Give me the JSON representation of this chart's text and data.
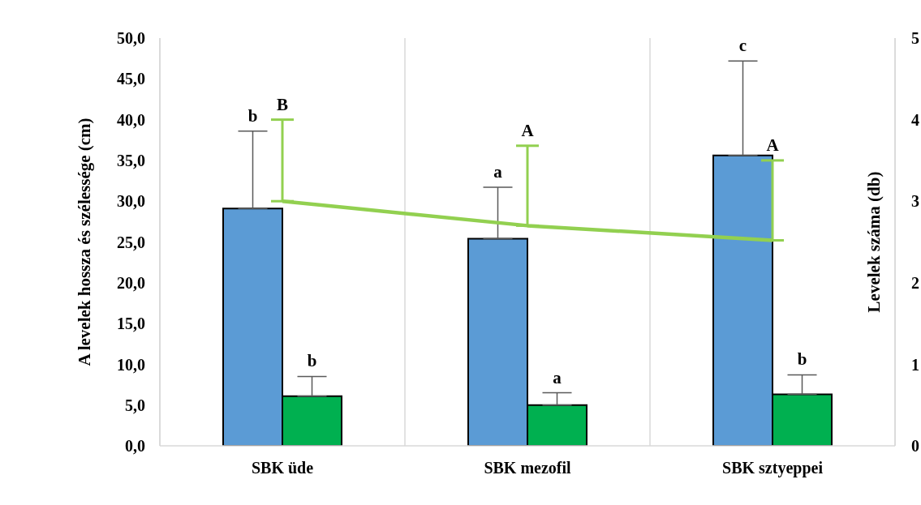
{
  "chart_data": {
    "type": "bar",
    "ylabel": "A levelek hossza és szélessége (cm)",
    "y2label": "Levelek száma (db)",
    "categories": [
      "SBK üde",
      "SBK mezofil",
      "SBK sztyeppei"
    ],
    "series": [
      {
        "color": "#5b9bd5",
        "values": [
          29.1,
          25.4,
          35.6
        ],
        "errors": [
          [
            29.1,
            38.6
          ],
          [
            25.4,
            31.7
          ],
          [
            35.6,
            47.2
          ]
        ]
      },
      {
        "color": "#00b050",
        "values": [
          6.1,
          5.0,
          6.3
        ],
        "errors": [
          [
            6.1,
            8.5
          ],
          [
            5.0,
            6.5
          ],
          [
            6.3,
            8.7
          ]
        ]
      },
      {
        "type": "line",
        "axis": "y2",
        "color": "#92d050",
        "values": [
          3.0,
          2.7,
          2.52
        ],
        "errors": [
          [
            3.0,
            4.0
          ],
          [
            2.7,
            3.68
          ],
          [
            2.52,
            3.5
          ]
        ]
      }
    ],
    "annotations": [
      {
        "text": "b",
        "x": "SBK üde",
        "y": 38.6
      },
      {
        "text": "B",
        "x": "SBK üde",
        "y": 40.0
      },
      {
        "text": "b",
        "x": "SBK üde",
        "y": 8.5
      },
      {
        "text": "a",
        "x": "SBK mezofil",
        "y": 31.7
      },
      {
        "text": "A",
        "x": "SBK mezofil",
        "y": 36.8
      },
      {
        "text": "a",
        "x": "SBK mezofil",
        "y": 6.5
      },
      "c",
      {
        "text": "A",
        "x": "SBK sztyeppei",
        "y": 35.0
      },
      {
        "text": "b",
        "x": "SBK sztyeppei",
        "y": 8.7
      }
    ],
    "ylim": [
      0,
      50
    ],
    "yticks": [
      {
        "value": 0,
        "label": "0,0"
      },
      {
        "value": 5,
        "label": "5,0"
      },
      {
        "value": 10,
        "label": "10,0"
      },
      {
        "value": 15,
        "label": "15,0"
      },
      {
        "value": 20,
        "label": "20,0"
      },
      {
        "value": 25,
        "label": "25,0"
      },
      {
        "value": 30,
        "label": "30,0"
      },
      {
        "value": 35,
        "label": "35,0"
      },
      {
        "value": 40,
        "label": "40,0"
      },
      {
        "value": 45,
        "label": "45,0"
      },
      {
        "value": 50,
        "label": "50,0"
      }
    ],
    "y2lim": [
      0,
      5
    ],
    "y2ticks": [
      0,
      1,
      2,
      3,
      4,
      5
    ],
    "grid": "x",
    "legend": false,
    "marker": "none",
    "line_style": "solid"
  }
}
